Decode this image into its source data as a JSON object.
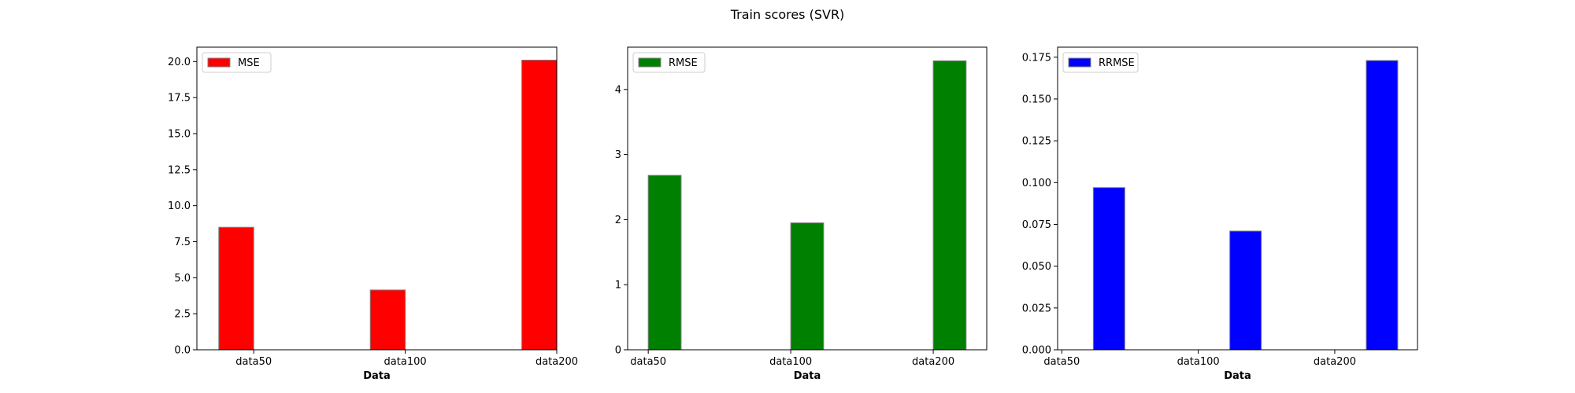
{
  "figure": {
    "title": "Train scores (SVR)"
  },
  "chart_data": [
    {
      "type": "bar",
      "categories": [
        "data50",
        "data100",
        "data200"
      ],
      "series": [
        {
          "name": "MSE",
          "values": [
            8.5,
            4.15,
            20.1
          ],
          "color": "#ff0000"
        }
      ],
      "xlabel": "Data",
      "ylabel": "",
      "ylim": [
        0,
        21.0
      ],
      "yticks": [
        0.0,
        2.5,
        5.0,
        7.5,
        10.0,
        12.5,
        15.0,
        17.5,
        20.0
      ],
      "ytick_labels": [
        "0.0",
        "2.5",
        "5.0",
        "7.5",
        "10.0",
        "12.5",
        "15.0",
        "17.5",
        "20.0"
      ],
      "xticks": [
        0.75,
        4.0,
        7.25
      ],
      "xlim": [
        -0.47,
        7.25
      ],
      "bar_x": [
        0,
        3.25,
        6.5
      ],
      "legend": "top-left",
      "grid": false
    },
    {
      "type": "bar",
      "categories": [
        "data50",
        "data100",
        "data200"
      ],
      "series": [
        {
          "name": "RMSE",
          "values": [
            2.68,
            1.95,
            4.44
          ],
          "color": "#008000"
        }
      ],
      "xlabel": "Data",
      "ylabel": "",
      "ylim": [
        0,
        4.65
      ],
      "yticks": [
        0,
        1,
        2,
        3,
        4
      ],
      "ytick_labels": [
        "0",
        "1",
        "2",
        "3",
        "4"
      ],
      "xticks": [
        0,
        3.25,
        6.5
      ],
      "xlim": [
        -0.47,
        7.72
      ],
      "bar_x": [
        0,
        3.25,
        6.5
      ],
      "legend": "top-left",
      "grid": false
    },
    {
      "type": "bar",
      "categories": [
        "data50",
        "data100",
        "data200"
      ],
      "series": [
        {
          "name": "RRMSE",
          "values": [
            0.097,
            0.071,
            0.173
          ],
          "color": "#0000ff"
        }
      ],
      "xlabel": "Data",
      "ylabel": "",
      "ylim": [
        0,
        0.181
      ],
      "yticks": [
        0.0,
        0.025,
        0.05,
        0.075,
        0.1,
        0.125,
        0.15,
        0.175
      ],
      "ytick_labels": [
        "0.000",
        "0.025",
        "0.050",
        "0.075",
        "0.100",
        "0.125",
        "0.150",
        "0.175"
      ],
      "xticks": [
        -0.75,
        2.5,
        5.75
      ],
      "xlim": [
        -0.85,
        7.72
      ],
      "bar_x": [
        0,
        3.25,
        6.5
      ],
      "legend": "top-left",
      "grid": false
    }
  ]
}
